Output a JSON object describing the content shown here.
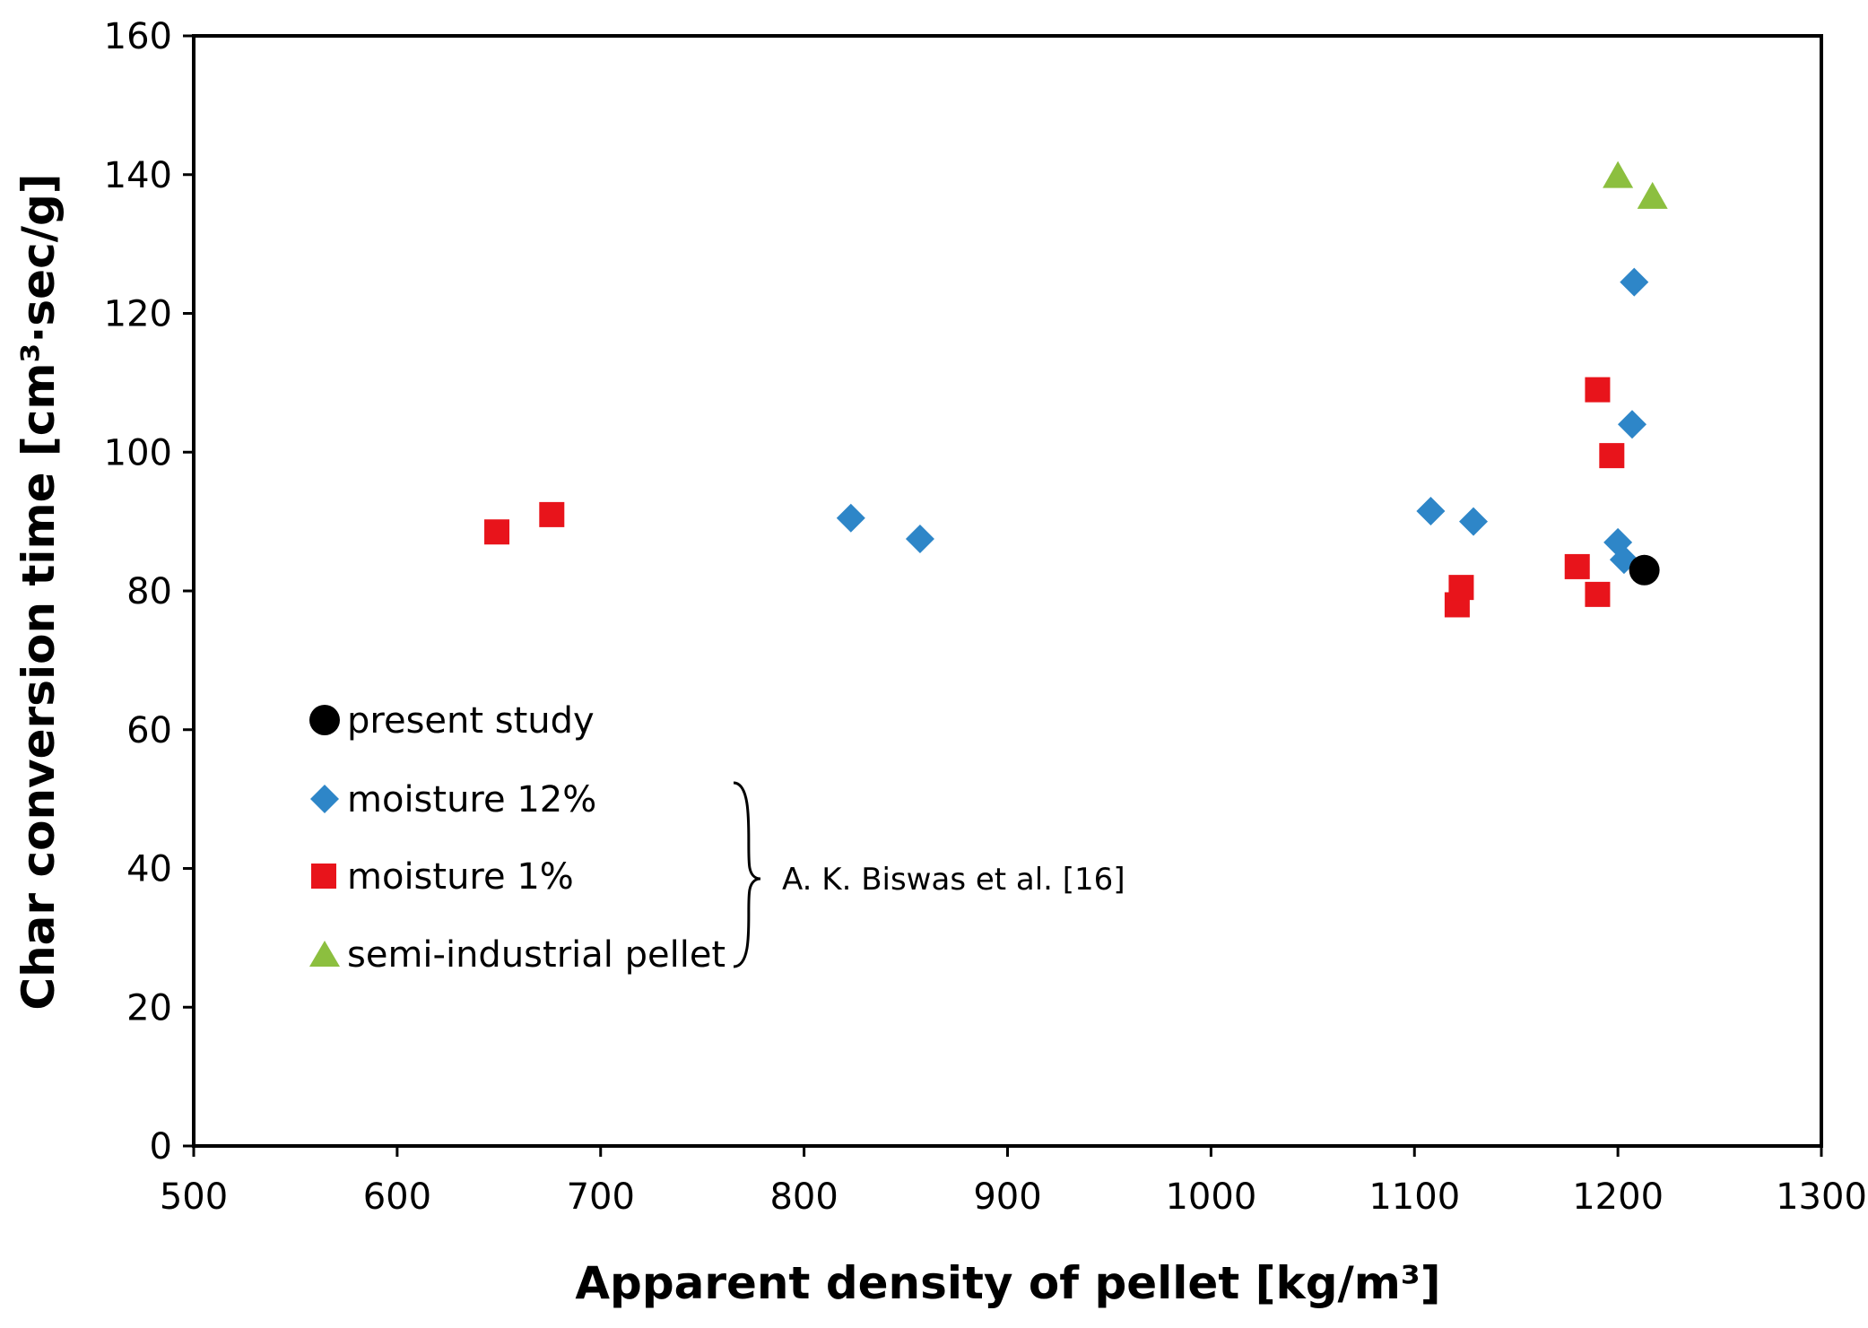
{
  "chart_data": {
    "type": "scatter",
    "title": "",
    "xlabel": "Apparent density of pellet [kg/m³]",
    "ylabel": "Char conversion time [cm³·sec/g]",
    "xlim": [
      500,
      1300
    ],
    "ylim": [
      0,
      160
    ],
    "x_ticks": [
      "500",
      "600",
      "700",
      "800",
      "900",
      "1000",
      "1100",
      "1200",
      "1300"
    ],
    "y_ticks": [
      "0",
      "20",
      "40",
      "60",
      "80",
      "100",
      "120",
      "140",
      "160"
    ],
    "grid": false,
    "legend_position": "left",
    "series": [
      {
        "name": "present study",
        "marker": "circle",
        "color": "#000000",
        "points": [
          [
            1213,
            83
          ]
        ]
      },
      {
        "name": "moisture 12%",
        "marker": "diamond",
        "color": "#2E86C8",
        "points": [
          [
            823,
            90.5
          ],
          [
            857,
            87.5
          ],
          [
            1108,
            91.5
          ],
          [
            1129,
            90
          ],
          [
            1200,
            87
          ],
          [
            1203,
            84.5
          ],
          [
            1207,
            104
          ],
          [
            1208,
            124.5
          ]
        ]
      },
      {
        "name": "moisture 1%",
        "marker": "square",
        "color": "#E8141B",
        "points": [
          [
            649,
            88.5
          ],
          [
            676,
            91
          ],
          [
            1121,
            78
          ],
          [
            1123,
            80.5
          ],
          [
            1180,
            83.5
          ],
          [
            1190,
            109
          ],
          [
            1190,
            79.5
          ],
          [
            1197,
            99.5
          ]
        ]
      },
      {
        "name": "semi-industrial pellet",
        "marker": "triangle",
        "color": "#8CBF3F",
        "points": [
          [
            1200,
            139.5
          ],
          [
            1217,
            136.5
          ]
        ]
      }
    ],
    "annotation": "A. K. Biswas et al. [16]"
  }
}
